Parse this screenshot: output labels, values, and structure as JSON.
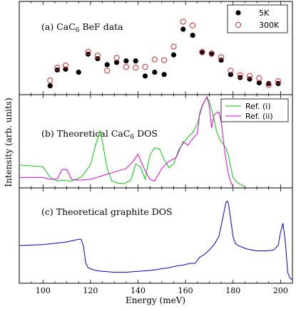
{
  "chart_data": [
    {
      "type": "scatter",
      "panel_label": "(a) CaC",
      "panel_label_sub": "6",
      "panel_label_tail": " BeF data",
      "xlim": [
        90,
        205
      ],
      "ylim": [
        0,
        1.0
      ],
      "xticks": [
        100,
        120,
        140,
        160,
        180,
        200
      ],
      "legend": {
        "position": "top-right"
      },
      "series": [
        {
          "name": "5K",
          "marker": "filled-circle",
          "color": "#000000",
          "points": [
            [
              103,
              0.07
            ],
            [
              106,
              0.28
            ],
            [
              109.5,
              0.29
            ],
            [
              115,
              0.25
            ],
            [
              119,
              0.49
            ],
            [
              123,
              0.43
            ],
            [
              127,
              0.35
            ],
            [
              131,
              0.38
            ],
            [
              135,
              0.4
            ],
            [
              139,
              0.4
            ],
            [
              143,
              0.2
            ],
            [
              147,
              0.25
            ],
            [
              151,
              0.22
            ],
            [
              155,
              0.48
            ],
            [
              159,
              0.82
            ],
            [
              163,
              0.74
            ],
            [
              167,
              0.51
            ],
            [
              171,
              0.49
            ],
            [
              175,
              0.41
            ],
            [
              179,
              0.22
            ],
            [
              183,
              0.18
            ],
            [
              187,
              0.16
            ],
            [
              191,
              0.11
            ],
            [
              195,
              0.1
            ],
            [
              199,
              0.1
            ]
          ]
        },
        {
          "name": "300K",
          "marker": "open-circle",
          "color": "#d62728",
          "points": [
            [
              103,
              0.14
            ],
            [
              106,
              0.31
            ],
            [
              109.5,
              0.34
            ],
            [
              119,
              0.52
            ],
            [
              123,
              0.47
            ],
            [
              127,
              0.27
            ],
            [
              131,
              0.44
            ],
            [
              135,
              0.32
            ],
            [
              139,
              0.31
            ],
            [
              143,
              0.32
            ],
            [
              147,
              0.42
            ],
            [
              151,
              0.41
            ],
            [
              155,
              0.59
            ],
            [
              159,
              0.92
            ],
            [
              163,
              0.87
            ],
            [
              167,
              0.52
            ],
            [
              171,
              0.5
            ],
            [
              175,
              0.45
            ],
            [
              179,
              0.27
            ],
            [
              183,
              0.21
            ],
            [
              187,
              0.2
            ],
            [
              191,
              0.17
            ],
            [
              195,
              0.08
            ],
            [
              199,
              0.13
            ]
          ]
        }
      ]
    },
    {
      "type": "line",
      "panel_label": "(b) Theoretical CaC",
      "panel_label_sub": "6",
      "panel_label_tail": " DOS",
      "xlim": [
        90,
        205
      ],
      "ylim": [
        0,
        1.0
      ],
      "legend": {
        "position": "top-right"
      },
      "series": [
        {
          "name": "Ref. (i)",
          "color": "#00cc00",
          "points": [
            [
              90,
              0.24
            ],
            [
              100,
              0.22
            ],
            [
              103,
              0.1
            ],
            [
              106,
              0.06
            ],
            [
              108,
              0.07
            ],
            [
              112,
              0.06
            ],
            [
              116,
              0.1
            ],
            [
              120,
              0.24
            ],
            [
              122,
              0.45
            ],
            [
              124,
              0.62
            ],
            [
              125,
              0.5
            ],
            [
              127,
              0.2
            ],
            [
              129,
              0.06
            ],
            [
              131,
              0.04
            ],
            [
              134,
              0.03
            ],
            [
              137,
              0.07
            ],
            [
              139,
              0.25
            ],
            [
              141,
              0.22
            ],
            [
              143,
              0.08
            ],
            [
              145,
              0.35
            ],
            [
              147,
              0.43
            ],
            [
              149,
              0.42
            ],
            [
              151,
              0.3
            ],
            [
              153,
              0.21
            ],
            [
              155,
              0.25
            ],
            [
              157,
              0.4
            ],
            [
              159,
              0.48
            ],
            [
              161,
              0.55
            ],
            [
              163,
              0.6
            ],
            [
              165,
              0.7
            ],
            [
              166,
              0.8
            ],
            [
              167,
              0.89
            ],
            [
              168,
              0.95
            ],
            [
              169,
              1.0
            ],
            [
              170,
              0.95
            ],
            [
              171,
              0.85
            ],
            [
              172,
              0.75
            ],
            [
              173,
              0.62
            ],
            [
              174,
              0.55
            ],
            [
              175,
              0.5
            ],
            [
              176,
              0.47
            ],
            [
              177,
              0.43
            ],
            [
              178,
              0.35
            ],
            [
              179,
              0.22
            ],
            [
              180,
              0.1
            ],
            [
              182,
              0.04
            ],
            [
              184,
              0.01
            ],
            [
              185,
              0.0
            ]
          ]
        },
        {
          "name": "Ref. (ii)",
          "color": "#dd00dd",
          "points": [
            [
              90,
              0.1
            ],
            [
              100,
              0.1
            ],
            [
              103,
              0.08
            ],
            [
              106,
              0.08
            ],
            [
              108,
              0.19
            ],
            [
              110,
              0.19
            ],
            [
              112,
              0.08
            ],
            [
              115,
              0.07
            ],
            [
              120,
              0.08
            ],
            [
              125,
              0.12
            ],
            [
              130,
              0.16
            ],
            [
              135,
              0.2
            ],
            [
              138,
              0.28
            ],
            [
              140,
              0.36
            ],
            [
              142,
              0.23
            ],
            [
              145,
              0.08
            ],
            [
              147,
              0.06
            ],
            [
              150,
              0.2
            ],
            [
              153,
              0.28
            ],
            [
              156,
              0.32
            ],
            [
              159,
              0.5
            ],
            [
              161,
              0.46
            ],
            [
              163,
              0.53
            ],
            [
              165,
              0.59
            ],
            [
              166,
              0.82
            ],
            [
              167,
              0.9
            ],
            [
              168,
              0.95
            ],
            [
              169,
              1.0
            ],
            [
              170,
              0.9
            ],
            [
              171,
              0.65
            ],
            [
              172,
              0.8
            ],
            [
              173,
              0.82
            ],
            [
              174,
              0.83
            ],
            [
              175,
              0.72
            ],
            [
              176,
              0.5
            ],
            [
              177,
              0.3
            ],
            [
              178,
              0.15
            ],
            [
              179,
              0.05
            ],
            [
              180,
              0.0
            ]
          ]
        }
      ]
    },
    {
      "type": "line",
      "panel_label": "(c) Theoretical graphite DOS",
      "xlim": [
        90,
        205
      ],
      "ylim": [
        0,
        1.0
      ],
      "xlabel": "Energy (meV)",
      "series": [
        {
          "color": "#0000cc",
          "points": [
            [
              90,
              0.4
            ],
            [
              100,
              0.41
            ],
            [
              110,
              0.44
            ],
            [
              115,
              0.47
            ],
            [
              116,
              0.47
            ],
            [
              117,
              0.4
            ],
            [
              118,
              0.2
            ],
            [
              119,
              0.15
            ],
            [
              122,
              0.12
            ],
            [
              125,
              0.11
            ],
            [
              130,
              0.1
            ],
            [
              135,
              0.1
            ],
            [
              140,
              0.11
            ],
            [
              145,
              0.12
            ],
            [
              148,
              0.13
            ],
            [
              150,
              0.14
            ],
            [
              153,
              0.15
            ],
            [
              156,
              0.17
            ],
            [
              159,
              0.18
            ],
            [
              162,
              0.2
            ],
            [
              164,
              0.2
            ],
            [
              166,
              0.27
            ],
            [
              168,
              0.3
            ],
            [
              170,
              0.35
            ],
            [
              172,
              0.41
            ],
            [
              174,
              0.5
            ],
            [
              175,
              0.62
            ],
            [
              176,
              0.75
            ],
            [
              177,
              0.88
            ],
            [
              177.5,
              0.9
            ],
            [
              178,
              0.88
            ],
            [
              179,
              0.7
            ],
            [
              180,
              0.5
            ],
            [
              181,
              0.42
            ],
            [
              183,
              0.39
            ],
            [
              186,
              0.36
            ],
            [
              190,
              0.34
            ],
            [
              194,
              0.34
            ],
            [
              197,
              0.35
            ],
            [
              199,
              0.4
            ],
            [
              200,
              0.55
            ],
            [
              201,
              0.65
            ],
            [
              202,
              0.45
            ],
            [
              203,
              0.1
            ],
            [
              204,
              0.03
            ],
            [
              205,
              0.02
            ]
          ]
        }
      ]
    }
  ],
  "axes": {
    "ylabel": "Intensity (arb. units)",
    "xlabel": "Energy (meV)"
  }
}
